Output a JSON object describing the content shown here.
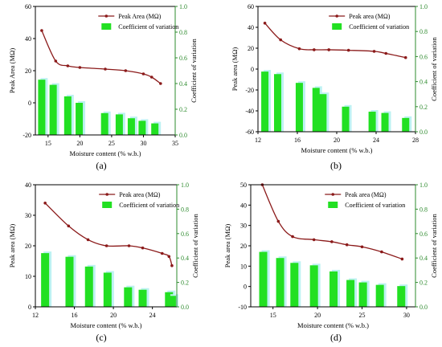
{
  "colors": {
    "line": "#8b1a1a",
    "bar": "#22e022",
    "bar_shadow": "#bdf2f2",
    "axis_left": "#000000",
    "axis_right": "#2e8b2e"
  },
  "chart_data": [
    {
      "type": "bar+line",
      "panel_label": "(a)",
      "xlabel": "Moisture content (% w.b.)",
      "ylabel": "Peak Area (MΩ)",
      "y2label": "Coefficient of variation",
      "legend_position": "top-right",
      "legend": {
        "line": "Peak Area (MΩ)",
        "bar": "Coefficient of variation"
      },
      "xlim": [
        13,
        35
      ],
      "xticks": [
        "15",
        "20",
        "25",
        "30",
        "35"
      ],
      "ylim": [
        -20,
        60
      ],
      "yticks": [
        "-20",
        "0",
        "20",
        "40",
        "60"
      ],
      "y2lim": [
        0,
        1.0
      ],
      "y2ticks": [
        "0.0",
        "0.2",
        "0.4",
        "0.6",
        "0.8",
        "1.0"
      ],
      "series": [
        {
          "name": "Peak Area (MΩ)",
          "kind": "line",
          "x": [
            14.0,
            16.2,
            18.1,
            20.0,
            24.0,
            27.2,
            30.0,
            31.3,
            32.7
          ],
          "y": [
            45,
            26,
            23,
            22,
            21,
            20,
            18,
            16,
            12
          ]
        },
        {
          "name": "Coefficient of variation",
          "kind": "bar",
          "x": [
            14.0,
            15.8,
            18.1,
            19.9,
            23.9,
            26.2,
            28.1,
            29.8,
            31.8
          ],
          "y": [
            0.43,
            0.39,
            0.3,
            0.25,
            0.17,
            0.16,
            0.13,
            0.11,
            0.09
          ]
        }
      ]
    },
    {
      "type": "bar+line",
      "panel_label": "(b)",
      "xlabel": "Moisture content (% w.b.)",
      "ylabel": "Peak area (MΩ)",
      "y2label": "Coefficient of variation",
      "legend_position": "top-right",
      "legend": {
        "line": "Peak area (MΩ)",
        "bar": "Coefficient of variation"
      },
      "xlim": [
        12,
        28
      ],
      "xticks": [
        "12",
        "16",
        "20",
        "24",
        "28"
      ],
      "ylim": [
        -60,
        60
      ],
      "yticks": [
        "-60",
        "-40",
        "-20",
        "0",
        "20",
        "40",
        "60"
      ],
      "y2lim": [
        0,
        1.0
      ],
      "y2ticks": [
        "0.0",
        "0.2",
        "0.4",
        "0.6",
        "0.8",
        "1.0"
      ],
      "series": [
        {
          "name": "Peak area (MΩ)",
          "kind": "line",
          "x": [
            12.7,
            14.3,
            16.2,
            17.7,
            19.2,
            21.2,
            23.8,
            25.0,
            27.0
          ],
          "y": [
            44,
            28,
            19.5,
            18.5,
            18.5,
            18,
            17,
            15,
            11
          ]
        },
        {
          "name": "Coefficient of variation",
          "kind": "bar",
          "x": [
            12.7,
            14.0,
            16.2,
            17.9,
            18.6,
            20.9,
            23.6,
            24.9,
            27.0
          ],
          "y": [
            0.48,
            0.46,
            0.39,
            0.35,
            0.3,
            0.2,
            0.16,
            0.15,
            0.11
          ]
        }
      ]
    },
    {
      "type": "bar+line",
      "panel_label": "(c)",
      "xlabel": "Moisture content (% w.b.)",
      "ylabel": "Peak area (MΩ)",
      "y2label": "Coefficient of variation",
      "legend_position": "top-right",
      "legend": {
        "line": "Peak area (MΩ)",
        "bar": "Coefficient of variation"
      },
      "xlim": [
        12,
        26.5
      ],
      "xticks": [
        "12",
        "16",
        "20",
        "24"
      ],
      "ylim": [
        0,
        40
      ],
      "yticks": [
        "0",
        "10",
        "20",
        "30",
        "40"
      ],
      "y2lim": [
        0,
        1.0
      ],
      "y2ticks": [
        "0.0",
        "0.2",
        "0.4",
        "0.6",
        "0.8",
        "1.0"
      ],
      "series": [
        {
          "name": "Peak area (MΩ)",
          "kind": "line",
          "x": [
            13.0,
            15.4,
            17.4,
            19.3,
            21.6,
            23.0,
            25.0,
            25.7,
            26.0
          ],
          "y": [
            34,
            26.5,
            22,
            20,
            20,
            19.3,
            17.5,
            16.5,
            13.5
          ]
        },
        {
          "name": "Coefficient of variation",
          "kind": "bar",
          "x": [
            13.0,
            15.5,
            17.5,
            19.4,
            21.5,
            23.0,
            25.7,
            26.0
          ],
          "y": [
            0.44,
            0.41,
            0.33,
            0.28,
            0.16,
            0.14,
            0.12,
            0.09
          ]
        }
      ]
    },
    {
      "type": "bar+line",
      "panel_label": "(d)",
      "xlabel": "Moisture content (% w.b.)",
      "ylabel": "Peak area (MΩ)",
      "y2label": "Coefficient of variation",
      "legend_position": "top-right",
      "legend": {
        "line": "Peak area (MΩ)",
        "bar": "Coefficient of variation"
      },
      "xlim": [
        12.5,
        31
      ],
      "xticks": [
        "15",
        "20",
        "25",
        "30"
      ],
      "ylim": [
        -10,
        50
      ],
      "yticks": [
        "-10",
        "0",
        "10",
        "20",
        "30",
        "40",
        "50"
      ],
      "y2lim": [
        0,
        1.0
      ],
      "y2ticks": [
        "0.0",
        "0.2",
        "0.4",
        "0.6",
        "0.8",
        "1.0"
      ],
      "series": [
        {
          "name": "Peak area (MΩ)",
          "kind": "line",
          "x": [
            13.8,
            15.6,
            17.2,
            19.6,
            21.6,
            23.3,
            25.0,
            27.2,
            29.5
          ],
          "y": [
            50,
            32,
            24.5,
            23,
            22,
            20.5,
            19.5,
            17,
            13.5
          ]
        },
        {
          "name": "Coefficient of variation",
          "kind": "bar",
          "x": [
            13.9,
            15.8,
            17.4,
            19.6,
            21.8,
            23.7,
            25.1,
            27.0,
            29.4
          ],
          "y": [
            0.45,
            0.4,
            0.36,
            0.34,
            0.29,
            0.22,
            0.2,
            0.18,
            0.17
          ]
        }
      ]
    }
  ]
}
